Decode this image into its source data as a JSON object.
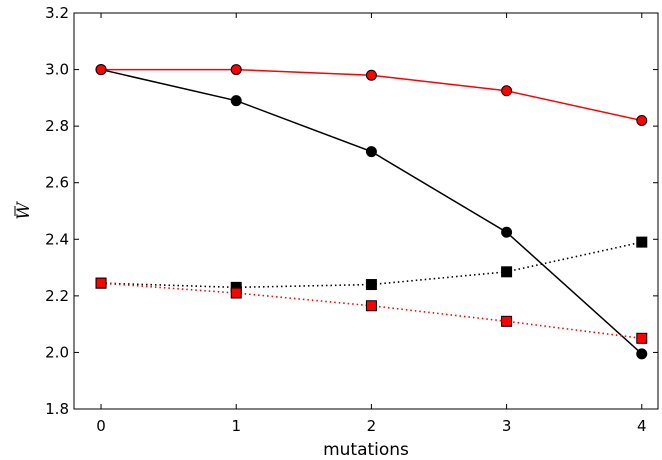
{
  "chart_data": {
    "type": "line",
    "xlabel": "mutations",
    "ylabel": "W",
    "ylabel_overbar": true,
    "xlim": [
      -0.2,
      4.12
    ],
    "ylim": [
      1.8,
      3.2
    ],
    "xticks": [
      0,
      1,
      2,
      3,
      4
    ],
    "xtick_labels": [
      "0",
      "1",
      "2",
      "3",
      "4"
    ],
    "yticks": [
      1.8,
      2.0,
      2.2,
      2.4,
      2.6,
      2.8,
      3.0,
      3.2
    ],
    "ytick_labels": [
      "1.8",
      "2.0",
      "2.2",
      "2.4",
      "2.6",
      "2.8",
      "3.0",
      "3.2"
    ],
    "grid": false,
    "x": [
      0,
      1,
      2,
      3,
      4
    ],
    "series": [
      {
        "color": "#000000",
        "linestyle": "solid",
        "marker": "circle",
        "values": [
          3.0,
          2.89,
          2.71,
          2.425,
          1.995
        ]
      },
      {
        "color": "#ff0000",
        "linestyle": "solid",
        "marker": "circle",
        "values": [
          3.0,
          3.0,
          2.98,
          2.925,
          2.82
        ]
      },
      {
        "color": "#000000",
        "linestyle": "dotted",
        "marker": "square",
        "values": [
          2.245,
          2.23,
          2.24,
          2.285,
          2.39
        ]
      },
      {
        "color": "#ff0000",
        "linestyle": "dotted",
        "marker": "square",
        "values": [
          2.245,
          2.21,
          2.165,
          2.11,
          2.05
        ]
      }
    ]
  }
}
